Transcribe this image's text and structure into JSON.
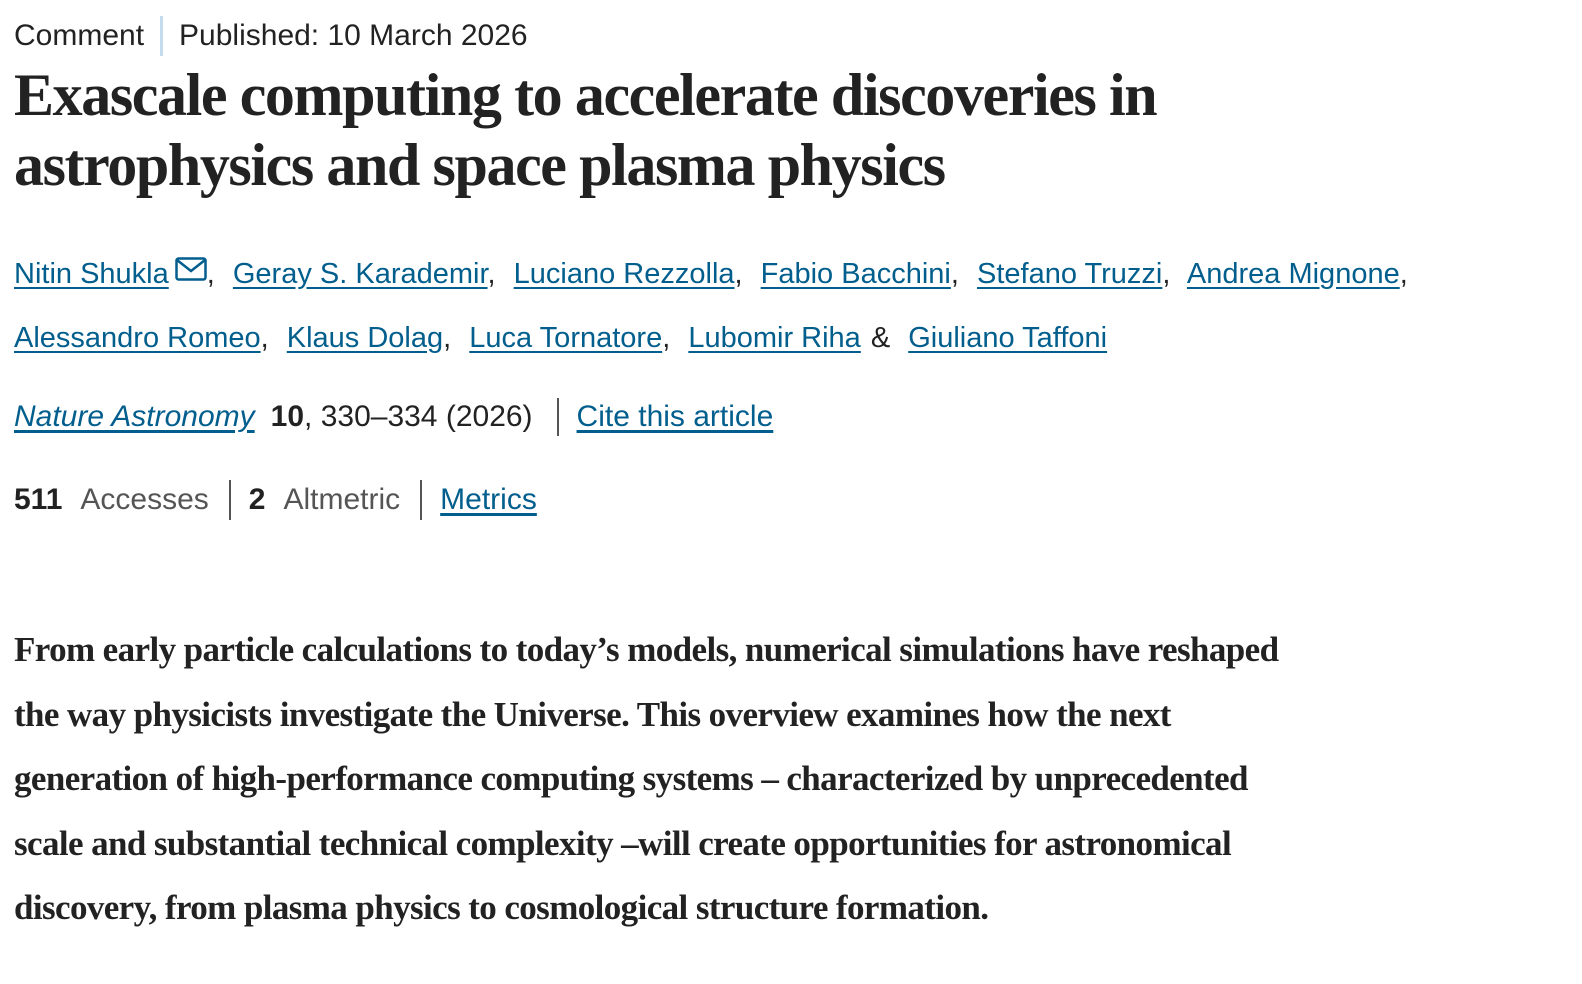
{
  "header": {
    "type": "Comment",
    "published": "Published: 10 March 2026"
  },
  "title": [
    "Exascale computing to accelerate discoveries in",
    "astrophysics and space plasma physics"
  ],
  "authors": [
    {
      "name": "Nitin Shukla",
      "sep": ","
    },
    {
      "name": "Geray S. Karademir",
      "sep": ","
    },
    {
      "name": "Luciano Rezzolla",
      "sep": ","
    },
    {
      "name": "Fabio Bacchini",
      "sep": ","
    },
    {
      "name": "Stefano Truzzi",
      "sep": ","
    },
    {
      "name": "Andrea Mignone",
      "sep": ","
    },
    {
      "name": "Alessandro Romeo",
      "sep": ","
    },
    {
      "name": "Klaus Dolag",
      "sep": ","
    },
    {
      "name": "Luca Tornatore",
      "sep": ","
    },
    {
      "name": "Lubomir Riha",
      "sep": "&"
    },
    {
      "name": "Giuliano Taffoni"
    }
  ],
  "citation": {
    "journal": "Nature Astronomy",
    "volume": 10,
    "pages": ", 330–334 (2026)",
    "cite": "Cite this article"
  },
  "metrics": {
    "accesses": 511,
    "accesses_label": "Accesses",
    "altmetric": 2,
    "altmetric_label": "Altmetric",
    "link": "Metrics"
  },
  "abstract": [
    "From early particle calculations to today’s models, numerical simulations have reshaped",
    "the way physicists investigate the Universe. This overview examines how the next",
    "generation of high-performance computing systems – characterized by unprecedented",
    "scale and substantial technical complexity –will create opportunities for astronomical",
    "discovery, from plasma physics to cosmological structure formation."
  ]
}
